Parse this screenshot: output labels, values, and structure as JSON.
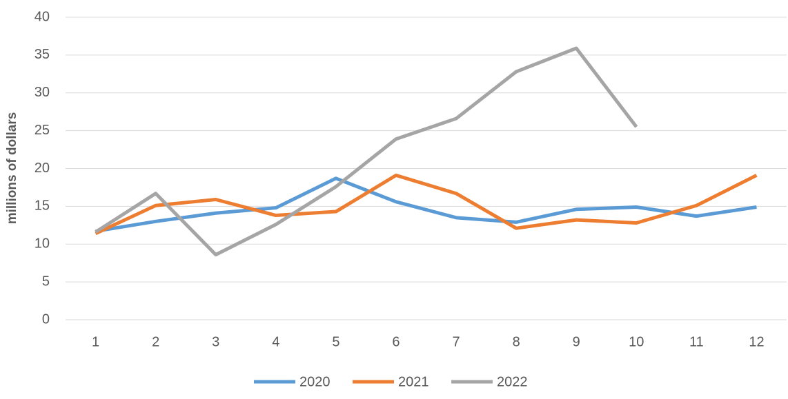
{
  "chart_data": {
    "type": "line",
    "y_label": "millions of dollars",
    "categories": [
      1,
      2,
      3,
      4,
      5,
      6,
      7,
      8,
      9,
      10,
      11,
      12
    ],
    "series": [
      {
        "name": "2020",
        "color": "#5b9bd5",
        "values": [
          11.7,
          13.0,
          14.1,
          14.8,
          18.7,
          15.6,
          13.5,
          12.9,
          14.6,
          14.9,
          13.7,
          14.9
        ]
      },
      {
        "name": "2021",
        "color": "#ed7d31",
        "values": [
          11.4,
          15.1,
          15.9,
          13.8,
          14.3,
          19.1,
          16.7,
          12.1,
          13.2,
          12.8,
          15.1,
          19.1
        ]
      },
      {
        "name": "2022",
        "color": "#a5a5a5",
        "values": [
          11.6,
          16.7,
          8.6,
          12.6,
          17.6,
          23.9,
          26.6,
          32.8,
          35.9,
          25.5,
          null,
          null
        ]
      }
    ],
    "ylim": [
      0,
      40
    ],
    "yticks": [
      0,
      5,
      10,
      15,
      20,
      25,
      30,
      35,
      40
    ],
    "grid": true,
    "legend": "bottom"
  }
}
